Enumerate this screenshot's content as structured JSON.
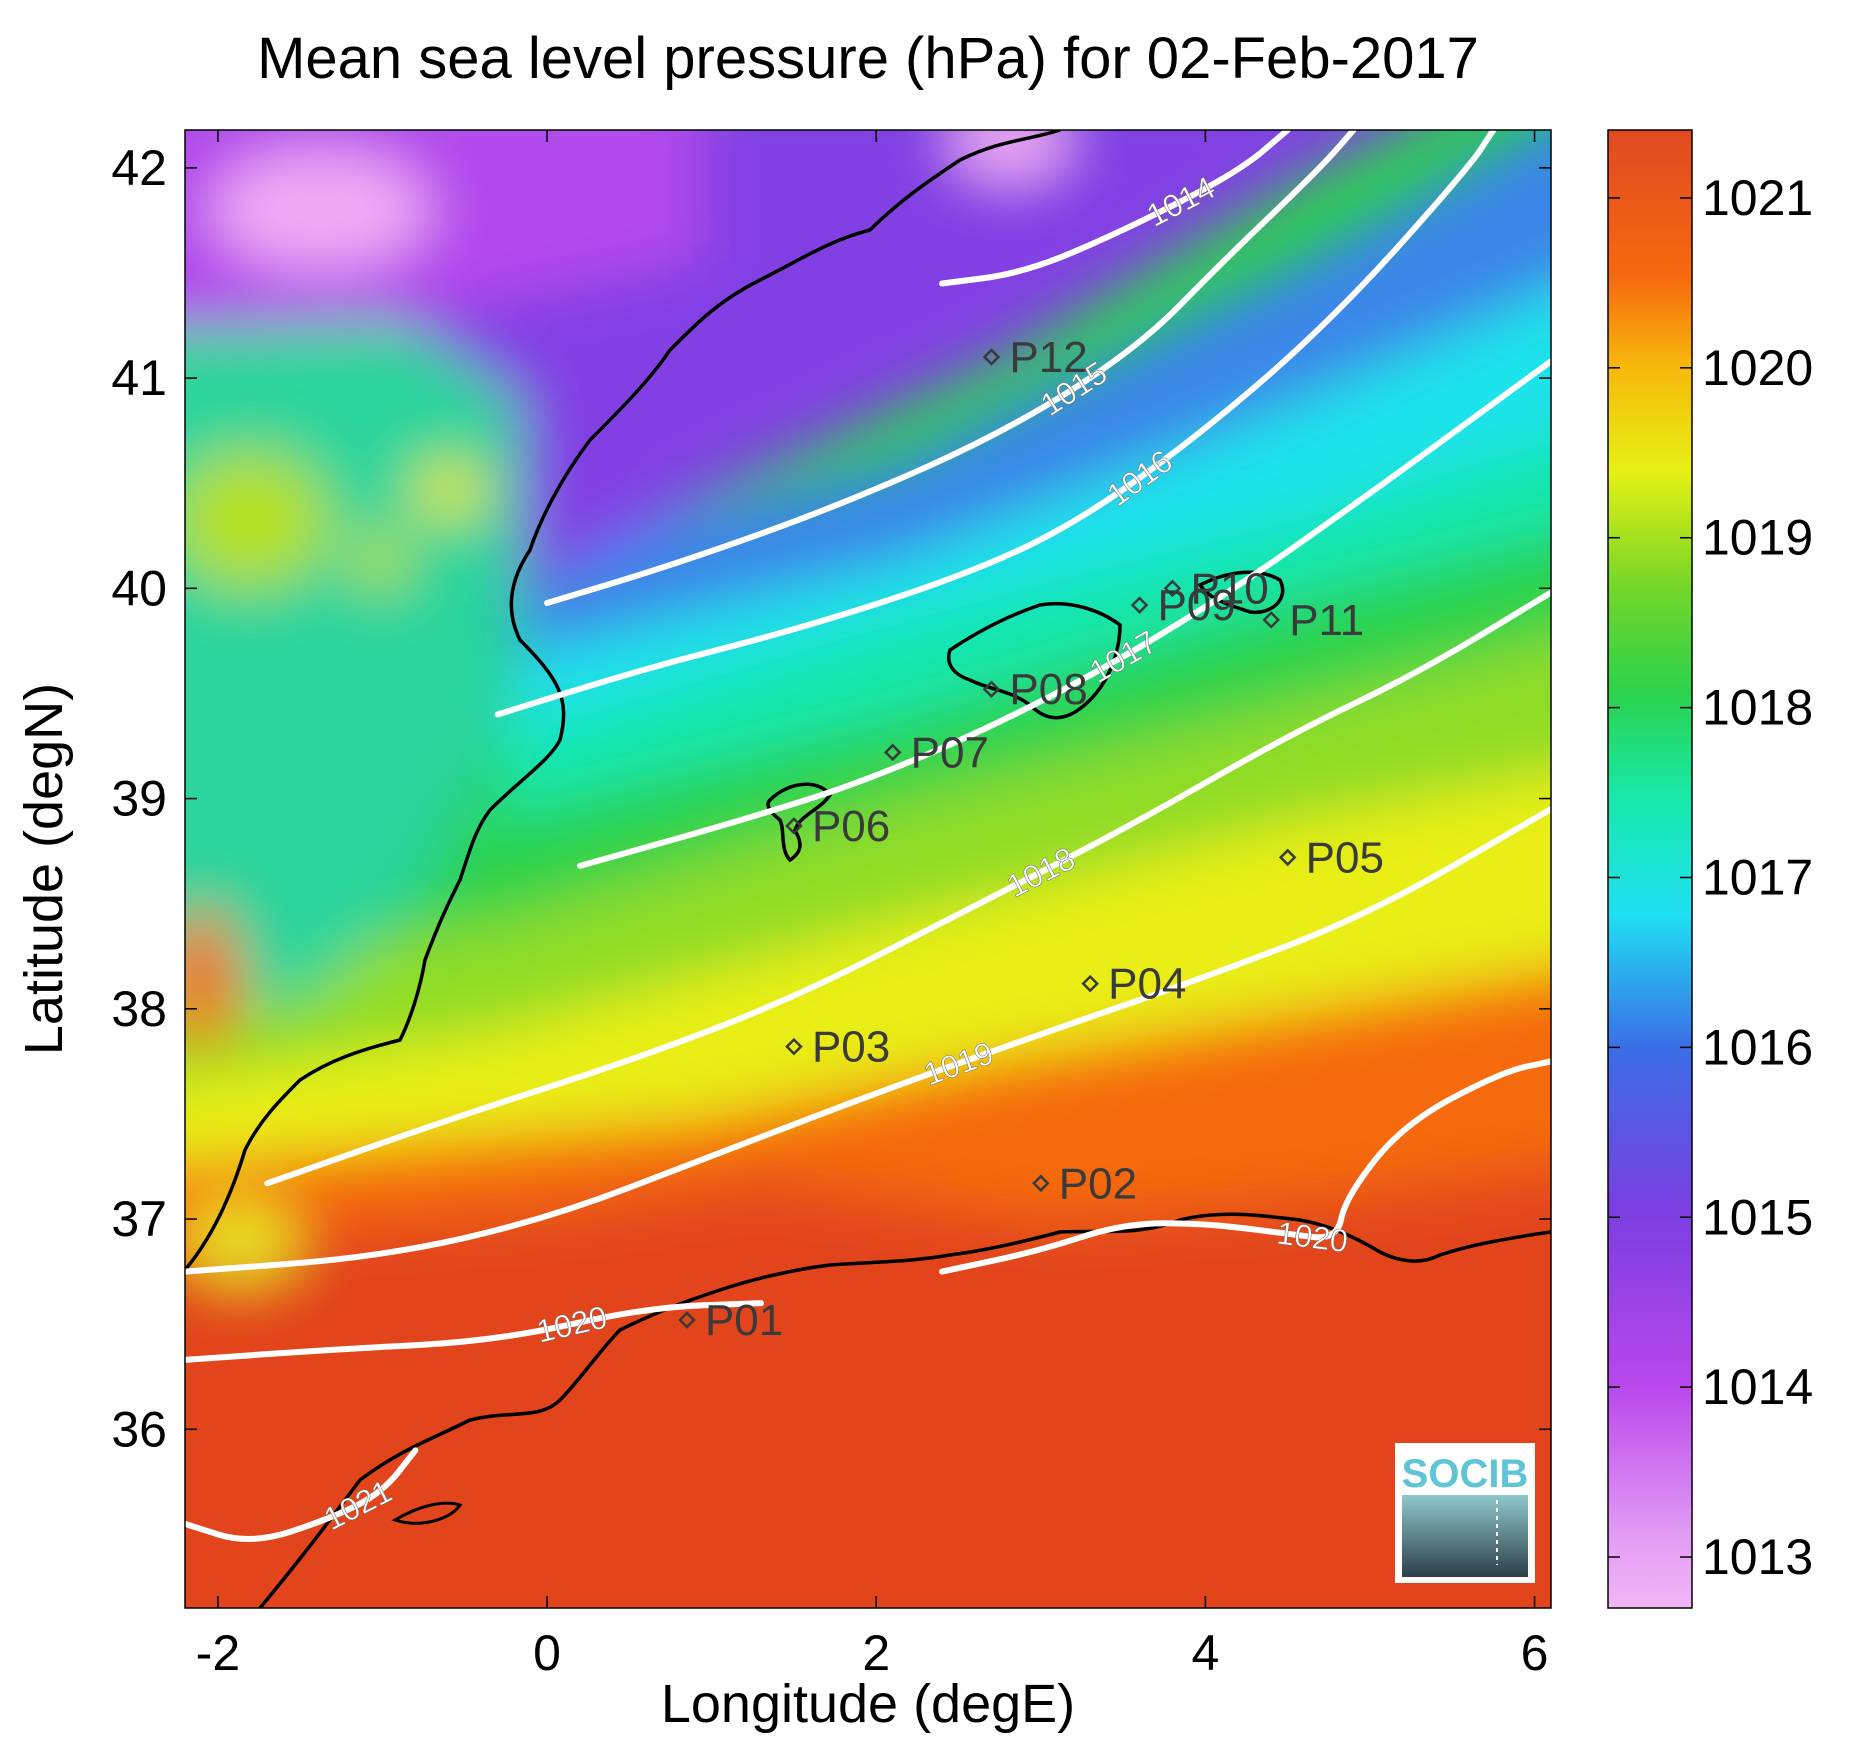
{
  "chart_data": {
    "type": "map",
    "title": "Mean sea level pressure (hPa) for 02-Feb-2017",
    "xlabel": "Longitude (degE)",
    "ylabel": "Latitude (degN)",
    "xlim": [
      -2.2,
      6.1
    ],
    "ylim": [
      35.15,
      42.18
    ],
    "x_ticks": [
      {
        "value": -2,
        "label": "-2"
      },
      {
        "value": 0,
        "label": "0"
      },
      {
        "value": 2,
        "label": "2"
      },
      {
        "value": 4,
        "label": "4"
      },
      {
        "value": 6,
        "label": "6"
      }
    ],
    "y_ticks": [
      {
        "value": 36,
        "label": "36"
      },
      {
        "value": 37,
        "label": "37"
      },
      {
        "value": 38,
        "label": "38"
      },
      {
        "value": 39,
        "label": "39"
      },
      {
        "value": 40,
        "label": "40"
      },
      {
        "value": 41,
        "label": "41"
      },
      {
        "value": 42,
        "label": "42"
      }
    ],
    "colorbar": {
      "range": [
        1012.7,
        1021.4
      ],
      "colormap": "jet-like (pink → purple → blue → cyan → green → yellow → orange → red)",
      "ticks": [
        {
          "value": 1013,
          "label": "1013"
        },
        {
          "value": 1014,
          "label": "1014"
        },
        {
          "value": 1015,
          "label": "1015"
        },
        {
          "value": 1016,
          "label": "1016"
        },
        {
          "value": 1017,
          "label": "1017"
        },
        {
          "value": 1018,
          "label": "1018"
        },
        {
          "value": 1019,
          "label": "1019"
        },
        {
          "value": 1020,
          "label": "1020"
        },
        {
          "value": 1021,
          "label": "1021"
        }
      ]
    },
    "contours": [
      {
        "level": 1014,
        "label": "1014",
        "points": [
          [
            2.4,
            41.45
          ],
          [
            2.9,
            41.5
          ],
          [
            3.5,
            41.7
          ],
          [
            4.2,
            41.98
          ],
          [
            4.5,
            42.18
          ]
        ]
      },
      {
        "level": 1015,
        "label": "1015",
        "points": [
          [
            0,
            39.93
          ],
          [
            0.8,
            40.12
          ],
          [
            1.8,
            40.4
          ],
          [
            2.8,
            40.75
          ],
          [
            3.6,
            41.15
          ],
          [
            4.1,
            41.55
          ],
          [
            4.7,
            42.0
          ],
          [
            4.9,
            42.18
          ]
        ]
      },
      {
        "level": 1016,
        "label": "1016",
        "points": [
          [
            -0.3,
            39.4
          ],
          [
            0.6,
            39.62
          ],
          [
            1.5,
            39.8
          ],
          [
            2.5,
            40.05
          ],
          [
            3.2,
            40.3
          ],
          [
            4.0,
            40.75
          ],
          [
            4.8,
            41.3
          ],
          [
            5.6,
            42.0
          ],
          [
            5.75,
            42.18
          ]
        ]
      },
      {
        "level": 1017,
        "label": "1017",
        "points": [
          [
            0.2,
            38.68
          ],
          [
            1.2,
            38.9
          ],
          [
            2.0,
            39.1
          ],
          [
            3.0,
            39.45
          ],
          [
            4.0,
            39.9
          ],
          [
            5.0,
            40.45
          ],
          [
            6.1,
            41.08
          ]
        ]
      },
      {
        "level": 1018,
        "label": "1018",
        "points": [
          [
            -1.7,
            37.17
          ],
          [
            -0.5,
            37.5
          ],
          [
            0.5,
            37.75
          ],
          [
            1.5,
            38.05
          ],
          [
            2.5,
            38.45
          ],
          [
            3.5,
            38.85
          ],
          [
            4.5,
            39.3
          ],
          [
            5.3,
            39.6
          ],
          [
            6.1,
            39.98
          ]
        ]
      },
      {
        "level": 1019,
        "label": "1019",
        "points": [
          [
            -2.2,
            36.75
          ],
          [
            -1.0,
            36.82
          ],
          [
            0,
            37.0
          ],
          [
            1.0,
            37.3
          ],
          [
            2.0,
            37.6
          ],
          [
            3.0,
            37.88
          ],
          [
            4.0,
            38.15
          ],
          [
            5.0,
            38.45
          ],
          [
            6.1,
            38.95
          ]
        ]
      },
      {
        "level": 1020,
        "label": "1020",
        "points": [
          [
            -2.2,
            36.33
          ],
          [
            -1.3,
            36.38
          ],
          [
            -0.3,
            36.42
          ],
          [
            0.6,
            36.58
          ],
          [
            1.3,
            36.6
          ]
        ]
      },
      {
        "level": 1020,
        "label": "1020",
        "points": [
          [
            2.4,
            36.75
          ],
          [
            3.0,
            36.85
          ],
          [
            3.5,
            36.98
          ],
          [
            4.0,
            36.98
          ],
          [
            4.5,
            36.93
          ],
          [
            4.8,
            36.9
          ],
          [
            4.85,
            37.1
          ],
          [
            5.2,
            37.45
          ],
          [
            5.8,
            37.7
          ],
          [
            6.1,
            37.75
          ]
        ]
      },
      {
        "level": 1021,
        "label": "1021",
        "points": [
          [
            -2.2,
            35.55
          ],
          [
            -1.8,
            35.45
          ],
          [
            -1.3,
            35.58
          ],
          [
            -1.0,
            35.7
          ],
          [
            -0.8,
            35.9
          ]
        ]
      }
    ],
    "stations": [
      {
        "name": "P01",
        "lon": 0.85,
        "lat": 36.52
      },
      {
        "name": "P02",
        "lon": 3.0,
        "lat": 37.17
      },
      {
        "name": "P03",
        "lon": 1.5,
        "lat": 37.82
      },
      {
        "name": "P04",
        "lon": 3.3,
        "lat": 38.12
      },
      {
        "name": "P05",
        "lon": 4.5,
        "lat": 38.72
      },
      {
        "name": "P06",
        "lon": 1.5,
        "lat": 38.87
      },
      {
        "name": "P07",
        "lon": 2.1,
        "lat": 39.22
      },
      {
        "name": "P08",
        "lon": 2.7,
        "lat": 39.52
      },
      {
        "name": "P09",
        "lon": 3.6,
        "lat": 39.92
      },
      {
        "name": "P10",
        "lon": 3.8,
        "lat": 40.0
      },
      {
        "name": "P11",
        "lon": 4.4,
        "lat": 39.85
      },
      {
        "name": "P12",
        "lon": 2.7,
        "lat": 41.1
      }
    ],
    "logo": "SOCIB"
  }
}
